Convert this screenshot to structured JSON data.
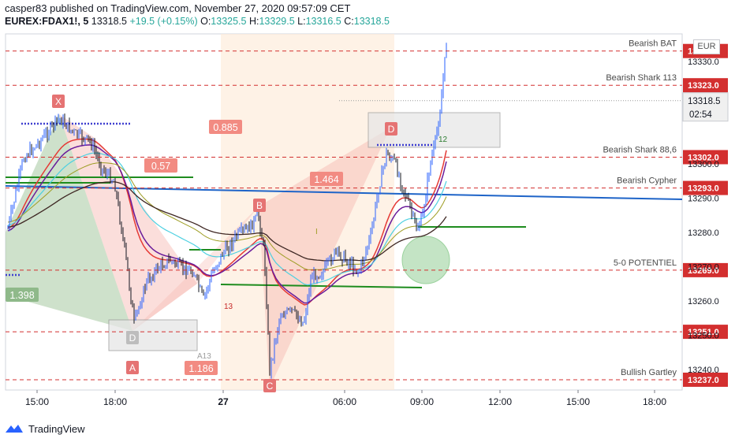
{
  "header": {
    "line1": "casper83 published on TradingView.com, November 27, 2020 09:57:09 CET",
    "symbol": "EUREX:FDAX1!, 5",
    "last": "13318.5",
    "change": "+19.5 (+0.15%)",
    "o_label": "O:",
    "o_value": "13325.5",
    "h_label": "H:",
    "h_value": "13329.5",
    "l_label": "L:",
    "l_value": "13316.5",
    "c_label": "C:",
    "c_value": "13318.5"
  },
  "currency": "EUR",
  "footer": {
    "brand": "TradingView"
  },
  "chart_data": {
    "type": "candlestick",
    "y_range": [
      13234,
      13338
    ],
    "y_ticks": [
      {
        "value": 13240,
        "label": "13240.0"
      },
      {
        "value": 13250,
        "label": "13250.0"
      },
      {
        "value": 13260,
        "label": "13260.0"
      },
      {
        "value": 13270,
        "label": "13270.0"
      },
      {
        "value": 13280,
        "label": "13280.0"
      },
      {
        "value": 13290,
        "label": "13290.0"
      },
      {
        "value": 13300,
        "label": "13300.0"
      },
      {
        "value": 13320,
        "label": "13320.0"
      },
      {
        "value": 13330,
        "label": "13330.0"
      }
    ],
    "x_ticks": [
      "15:00",
      "18:00",
      "27",
      "06:00",
      "09:00",
      "12:00",
      "15:00",
      "18:00"
    ],
    "levels": [
      {
        "label": "Bearish BAT",
        "price": "13333.0",
        "value": 13333
      },
      {
        "label": "Bearish Shark 113",
        "price": "13323.0",
        "value": 13323
      },
      {
        "label": "Bearish Shark 88,6",
        "price": "13302.0",
        "value": 13302
      },
      {
        "label": "Bearish Cypher",
        "price": "13293.0",
        "value": 13293
      },
      {
        "label": "5-0 POTENTIEL",
        "price": "13269.0",
        "value": 13269
      },
      {
        "label": "",
        "price": "13251.0",
        "value": 13251
      },
      {
        "label": "Bullish Gartley",
        "price": "13237.0",
        "value": 13237
      }
    ],
    "extra_price_tags": [
      {
        "price": "13318.0",
        "value": 13318
      }
    ],
    "current_price": {
      "price": "13318.5",
      "countdown": "02:54",
      "value": 13318.5
    },
    "pattern_points": [
      {
        "label": "X"
      },
      {
        "label": "D"
      },
      {
        "label": "A"
      },
      {
        "label": "B"
      },
      {
        "label": "C"
      },
      {
        "label": "D"
      }
    ],
    "ratios": [
      "0.885",
      "0.57",
      "1.464",
      "1.186",
      "1.398"
    ],
    "small_labels": [
      "13",
      "A13",
      "12",
      "I"
    ]
  }
}
